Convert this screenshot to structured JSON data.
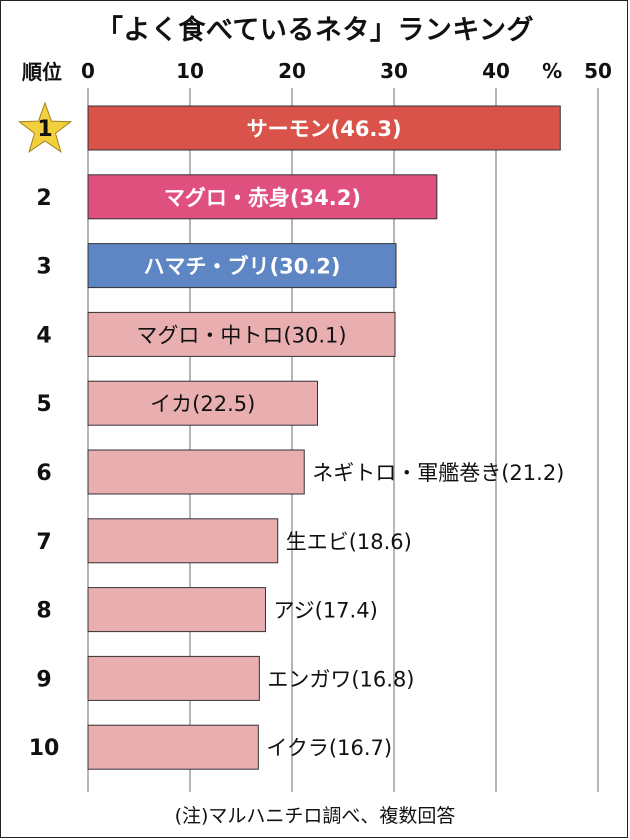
{
  "chart_data": {
    "type": "bar",
    "orientation": "horizontal",
    "title": "「よく食べているネタ」ランキング",
    "rank_header": "順位",
    "unit_label": "%",
    "xlim": [
      0,
      50
    ],
    "ticks": [
      0,
      10,
      20,
      30,
      40,
      50
    ],
    "grid": true,
    "ranks": [
      "1",
      "2",
      "3",
      "4",
      "5",
      "6",
      "7",
      "8",
      "9",
      "10"
    ],
    "categories": [
      "サーモン",
      "マグロ・赤身",
      "ハマチ・ブリ",
      "マグロ・中トロ",
      "イカ",
      "ネギトロ・軍艦巻き",
      "生エビ",
      "アジ",
      "エンガワ",
      "イクラ"
    ],
    "values": [
      46.3,
      34.2,
      30.2,
      30.1,
      22.5,
      21.2,
      18.6,
      17.4,
      16.8,
      16.7
    ],
    "bar_labels": [
      "サーモン(46.3)",
      "マグロ・赤身(34.2)",
      "ハマチ・ブリ(30.2)",
      "マグロ・中トロ(30.1)",
      "イカ(22.5)",
      "ネギトロ・軍艦巻き(21.2)",
      "生エビ(18.6)",
      "アジ(17.4)",
      "エンガワ(16.8)",
      "イクラ(16.7)"
    ],
    "label_inside": [
      true,
      true,
      true,
      true,
      true,
      false,
      false,
      false,
      false,
      false
    ],
    "colors": [
      "#d9534a",
      "#e0507f",
      "#5e86c4",
      "#e8aeb0",
      "#e8aeb0",
      "#e8aeb0",
      "#e8aeb0",
      "#e8aeb0",
      "#e8aeb0",
      "#e8aeb0"
    ],
    "label_colors": [
      "#ffffff",
      "#ffffff",
      "#ffffff",
      "#111111",
      "#111111",
      "#111111",
      "#111111",
      "#111111",
      "#111111",
      "#111111"
    ],
    "highlight_icon": "star-icon",
    "highlight_color": "#f2cf3d",
    "note": "(注)マルハニチロ調べ、複数回答"
  }
}
